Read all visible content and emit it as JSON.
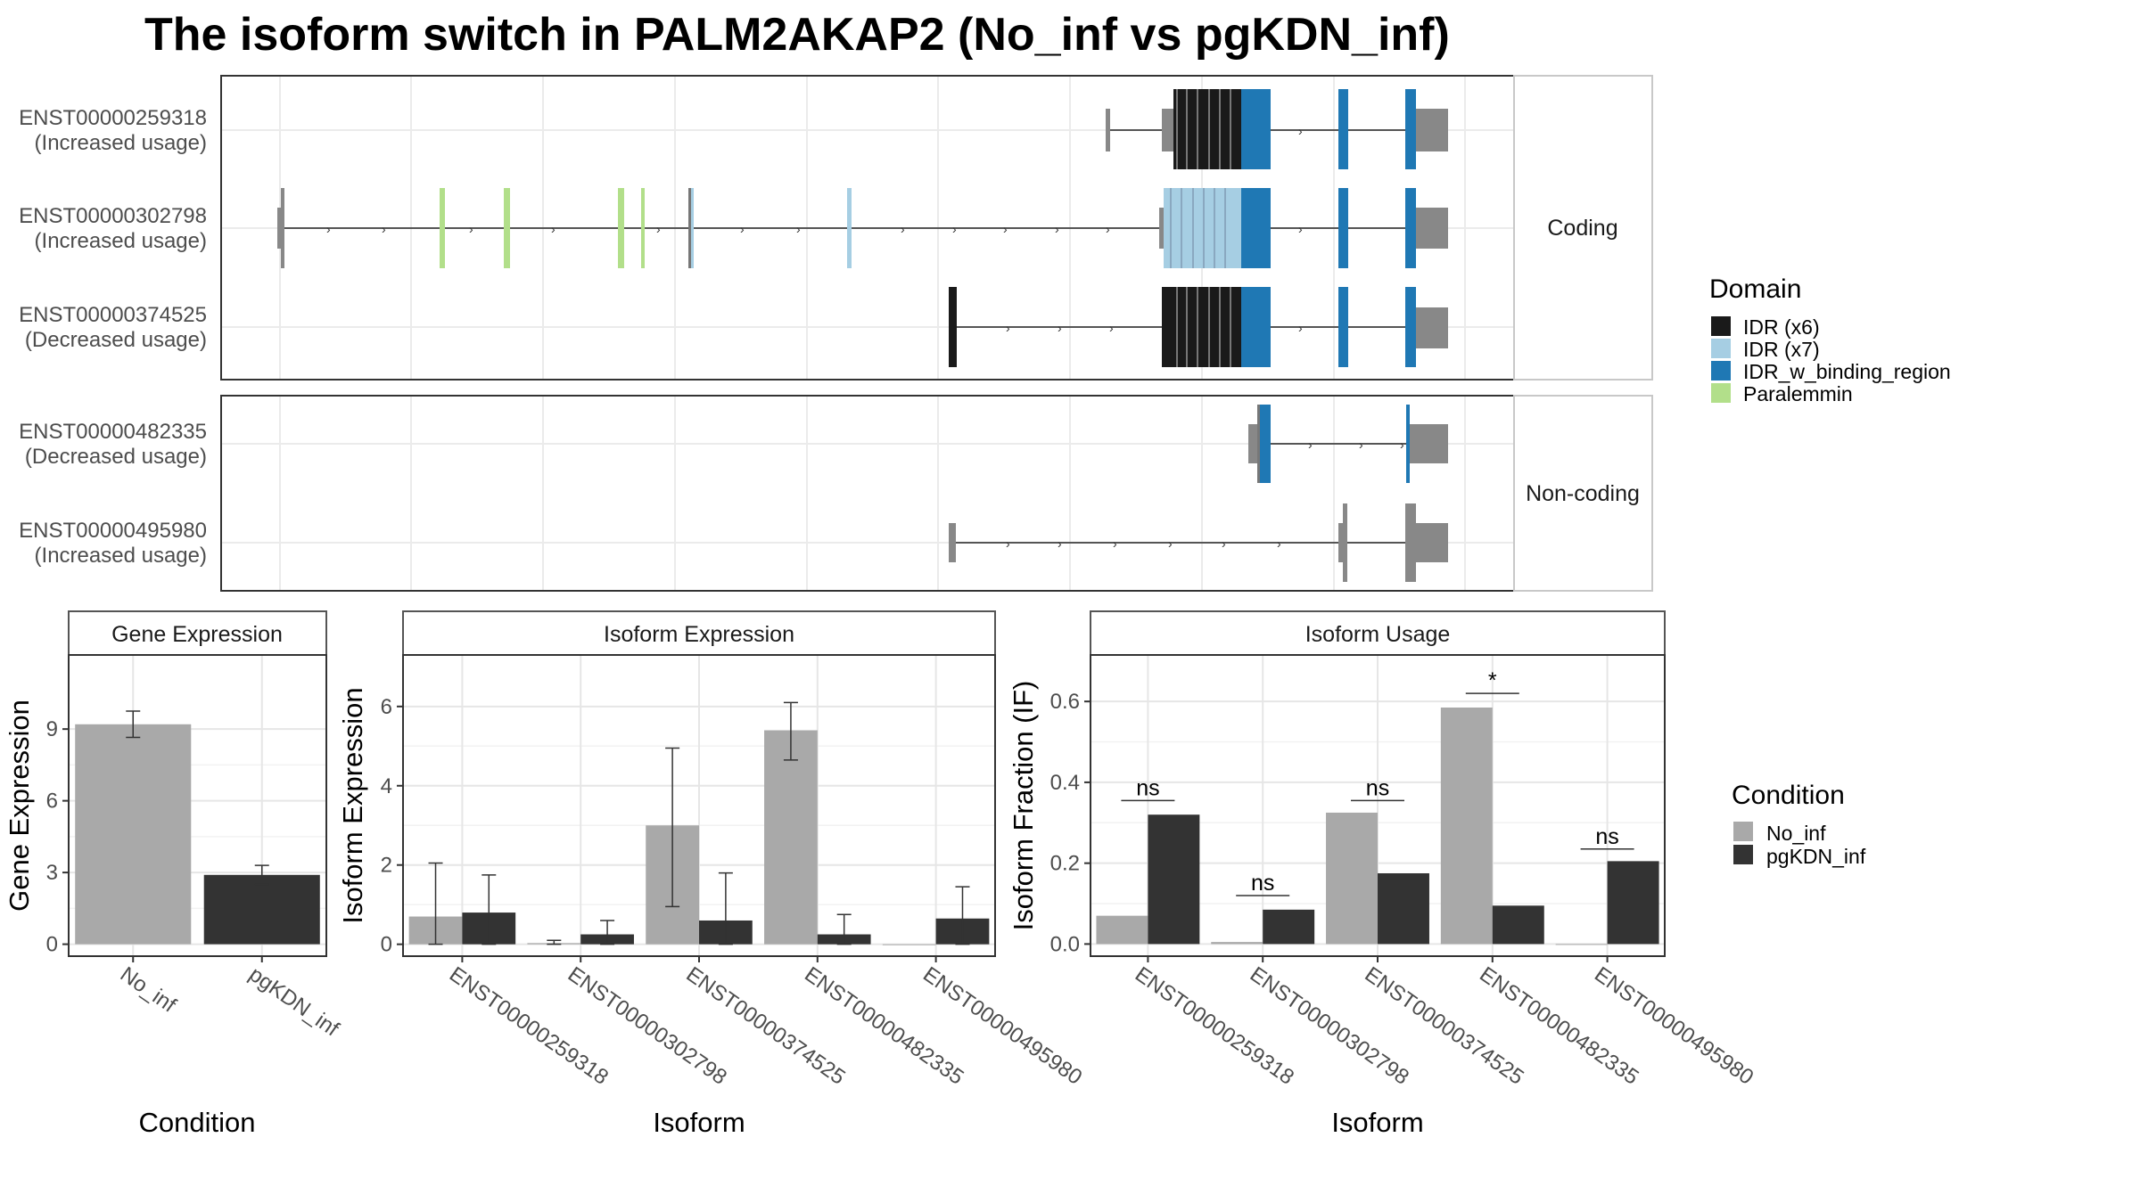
{
  "title": "The isoform switch in PALM2AKAP2 (No_inf vs pgKDN_inf)",
  "colors": {
    "idr_x6": "#1a1a1a",
    "idr_x7": "#a6cee3",
    "idr_binding": "#1f78b4",
    "paralemmin": "#b2df8a",
    "utr": "#888888",
    "no_inf": "#a9a9a9",
    "pgkdn_inf": "#333333"
  },
  "structure": {
    "groups": [
      {
        "label": "Coding",
        "transcripts": [
          0,
          1,
          2
        ]
      },
      {
        "label": "Non-coding",
        "transcripts": [
          3,
          4
        ]
      }
    ],
    "transcripts": [
      {
        "id": "ENST00000259318",
        "usage": "(Increased usage)"
      },
      {
        "id": "ENST00000302798",
        "usage": "(Increased usage)"
      },
      {
        "id": "ENST00000374525",
        "usage": "(Decreased usage)"
      },
      {
        "id": "ENST00000482335",
        "usage": "(Decreased usage)"
      },
      {
        "id": "ENST00000495980",
        "usage": "(Increased usage)"
      }
    ]
  },
  "domain_legend": {
    "title": "Domain",
    "items": [
      {
        "label": "IDR (x6)",
        "color": "#1a1a1a"
      },
      {
        "label": "IDR (x7)",
        "color": "#a6cee3"
      },
      {
        "label": "IDR_w_binding_region",
        "color": "#1f78b4"
      },
      {
        "label": "Paralemmin",
        "color": "#b2df8a"
      }
    ]
  },
  "condition_legend": {
    "title": "Condition",
    "items": [
      {
        "label": "No_inf",
        "color": "#a9a9a9"
      },
      {
        "label": "pgKDN_inf",
        "color": "#333333"
      }
    ]
  },
  "chart_data": [
    {
      "type": "bar",
      "title": "Gene Expression",
      "xlabel": "Condition",
      "ylabel": "Gene Expression",
      "categories": [
        "No_inf",
        "pgKDN_inf"
      ],
      "values": [
        9.2,
        2.9
      ],
      "error": [
        [
          8.65,
          9.75
        ],
        [
          2.5,
          3.3
        ]
      ],
      "ylim": [
        -0.5,
        12.1
      ],
      "yticks": [
        0,
        3,
        6,
        9
      ]
    },
    {
      "type": "bar",
      "title": "Isoform Expression",
      "xlabel": "Isoform",
      "ylabel": "Isoform Expression",
      "categories": [
        "ENST00000259318",
        "ENST00000302798",
        "ENST00000374525",
        "ENST00000482335",
        "ENST00000495980"
      ],
      "series": [
        {
          "name": "No_inf",
          "values": [
            0.7,
            0.03,
            3.0,
            5.4,
            0.0
          ],
          "error": [
            [
              0.0,
              2.05
            ],
            [
              0.0,
              0.1
            ],
            [
              0.95,
              4.95
            ],
            [
              4.65,
              6.1
            ],
            [
              0.0,
              0.0
            ]
          ]
        },
        {
          "name": "pgKDN_inf",
          "values": [
            0.8,
            0.25,
            0.6,
            0.25,
            0.65
          ],
          "error": [
            [
              0.0,
              1.75
            ],
            [
              0.0,
              0.6
            ],
            [
              0.0,
              1.8
            ],
            [
              0.0,
              0.75
            ],
            [
              0.0,
              1.45
            ]
          ]
        }
      ],
      "ylim": [
        -0.3,
        7.3
      ],
      "yticks": [
        0,
        2,
        4,
        6
      ]
    },
    {
      "type": "bar",
      "title": "Isoform Usage",
      "xlabel": "Isoform",
      "ylabel": "Isoform Fraction (IF)",
      "categories": [
        "ENST00000259318",
        "ENST00000302798",
        "ENST00000374525",
        "ENST00000482335",
        "ENST00000495980"
      ],
      "series": [
        {
          "name": "No_inf",
          "values": [
            0.07,
            0.005,
            0.325,
            0.585,
            0.0
          ]
        },
        {
          "name": "pgKDN_inf",
          "values": [
            0.32,
            0.085,
            0.175,
            0.095,
            0.205
          ]
        }
      ],
      "significance": [
        "ns",
        "ns",
        "ns",
        "*",
        "ns"
      ],
      "sig_levels": [
        0.355,
        0.12,
        0.355,
        0.62,
        0.235
      ],
      "ylim": [
        -0.03,
        0.715
      ],
      "yticks": [
        0.0,
        0.2,
        0.4,
        0.6
      ]
    }
  ]
}
